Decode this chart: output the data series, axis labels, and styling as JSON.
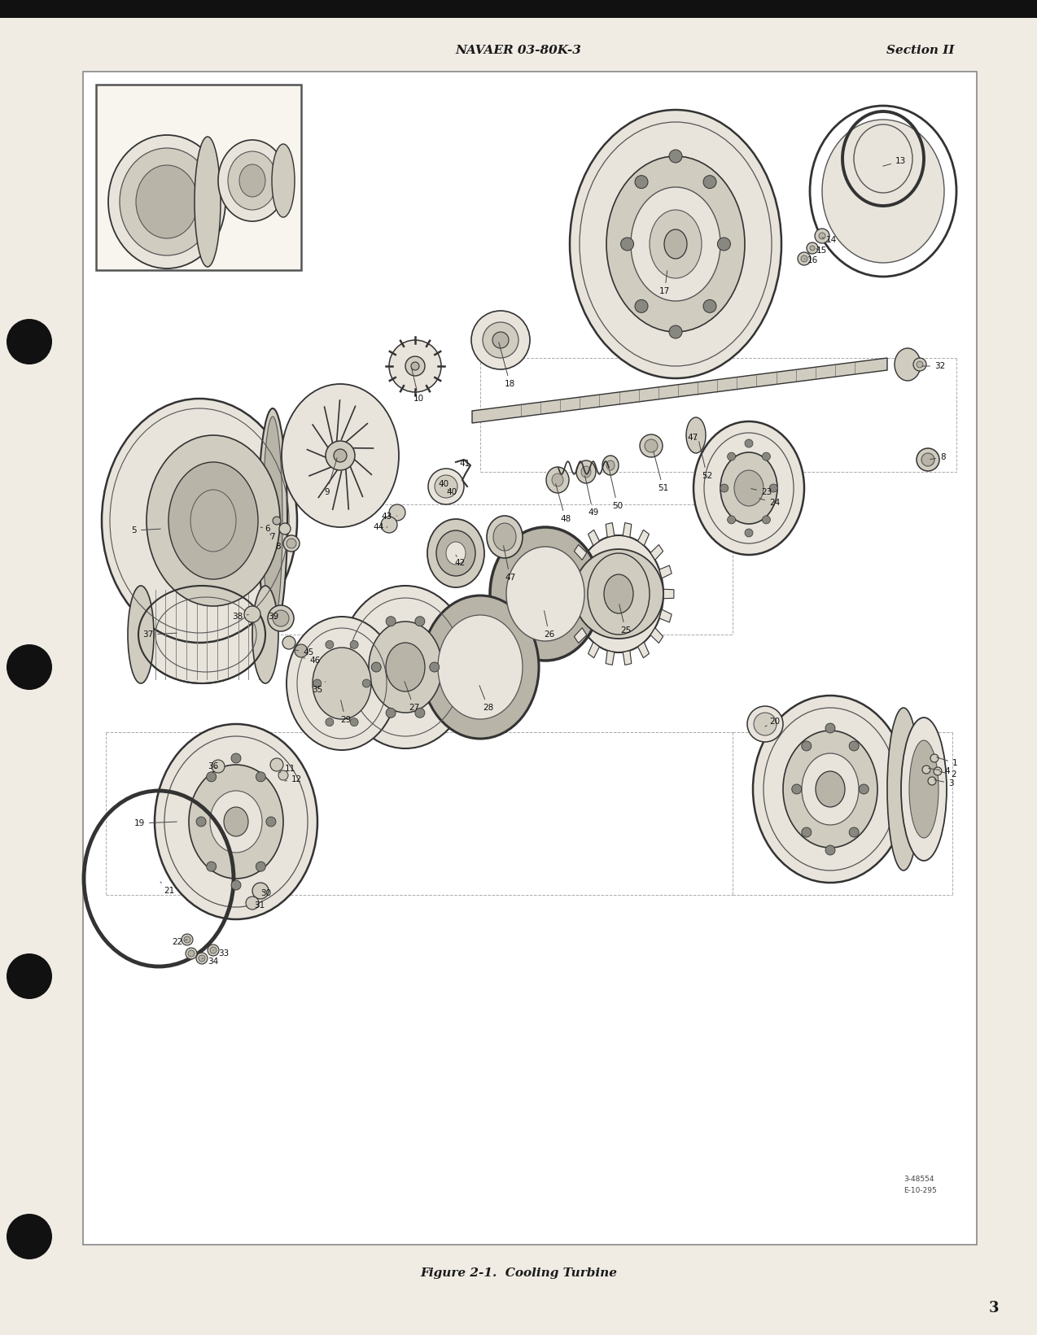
{
  "page_bg_color": "#f0ece4",
  "page_bg_inner": "#ffffff",
  "text_color": "#1a1a1a",
  "header_left": "NAVAER 03-80K-3",
  "header_right": "Section II",
  "footer_caption": "Figure 2-1.  Cooling Turbine",
  "page_number": "3",
  "top_bar_color": "#111111",
  "fig_width": 12.74,
  "fig_height": 16.41,
  "dpi": 100
}
